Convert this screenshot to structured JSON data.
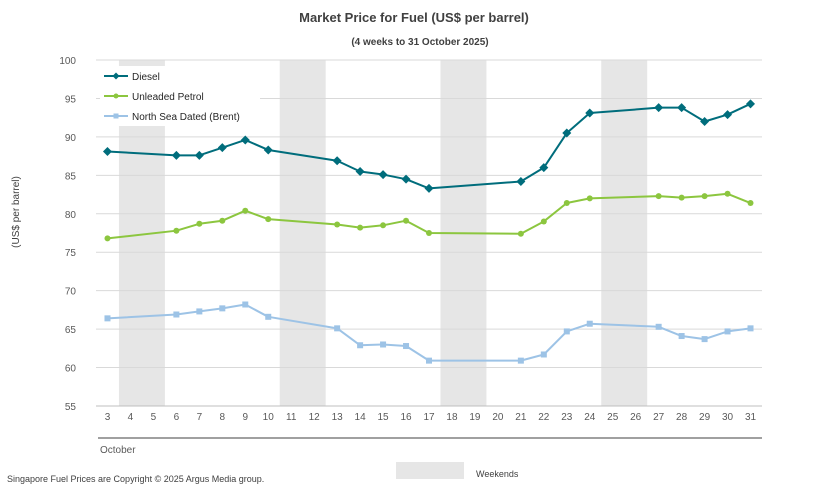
{
  "chart_data": {
    "type": "line",
    "title": "Market Price for Fuel (US$ per barrel)",
    "subtitle": "(4 weeks to 31 October 2025)",
    "ylabel": "(US$ per barrel)",
    "xlabel": "October",
    "ylim": [
      55,
      100
    ],
    "yticks": [
      55,
      60,
      65,
      70,
      75,
      80,
      85,
      90,
      95,
      100
    ],
    "grid": true,
    "legend_position": "top-left",
    "categories": [
      "3",
      "4",
      "5",
      "6",
      "7",
      "8",
      "9",
      "10",
      "11",
      "12",
      "13",
      "14",
      "15",
      "16",
      "17",
      "18",
      "19",
      "20",
      "21",
      "22",
      "23",
      "24",
      "25",
      "26",
      "27",
      "28",
      "29",
      "30",
      "31"
    ],
    "weekend_bands": [
      [
        "4",
        "5"
      ],
      [
        "11",
        "12"
      ],
      [
        "18",
        "19"
      ],
      [
        "25",
        "26"
      ]
    ],
    "series": [
      {
        "name": "Diesel",
        "color": "#006D7C",
        "marker": "diamond",
        "x": [
          "3",
          "6",
          "7",
          "8",
          "9",
          "10",
          "13",
          "14",
          "15",
          "16",
          "17",
          "21",
          "22",
          "23",
          "24",
          "27",
          "28",
          "29",
          "30",
          "31"
        ],
        "values": [
          88.1,
          87.6,
          87.6,
          88.6,
          89.6,
          88.3,
          86.9,
          85.5,
          85.1,
          84.5,
          83.3,
          84.2,
          86.0,
          90.5,
          93.1,
          93.8,
          93.8,
          92.0,
          92.9,
          94.3
        ]
      },
      {
        "name": "Unleaded Petrol",
        "color": "#8CC63F",
        "marker": "circle",
        "x": [
          "3",
          "6",
          "7",
          "8",
          "9",
          "10",
          "13",
          "14",
          "15",
          "16",
          "17",
          "21",
          "22",
          "23",
          "24",
          "27",
          "28",
          "29",
          "30",
          "31"
        ],
        "values": [
          76.8,
          77.8,
          78.7,
          79.1,
          80.4,
          79.3,
          78.6,
          78.2,
          78.5,
          79.1,
          77.5,
          77.4,
          79.0,
          81.4,
          82.0,
          82.3,
          82.1,
          82.3,
          82.6,
          81.4
        ]
      },
      {
        "name": "North Sea Dated (Brent)",
        "color": "#9DC3E6",
        "marker": "square",
        "x": [
          "3",
          "6",
          "7",
          "8",
          "9",
          "10",
          "13",
          "14",
          "15",
          "16",
          "17",
          "21",
          "22",
          "23",
          "24",
          "27",
          "28",
          "29",
          "30",
          "31"
        ],
        "values": [
          66.4,
          66.9,
          67.3,
          67.7,
          68.2,
          66.6,
          65.1,
          62.9,
          63.0,
          62.8,
          60.9,
          60.9,
          61.7,
          64.7,
          65.7,
          65.3,
          64.1,
          63.7,
          64.7,
          65.1
        ]
      }
    ]
  },
  "footer": {
    "copyright": "Singapore Fuel Prices are Copyright © 2025 Argus Media group.",
    "weekends_label": "Weekends",
    "weekend_color": "#E6E6E6"
  }
}
